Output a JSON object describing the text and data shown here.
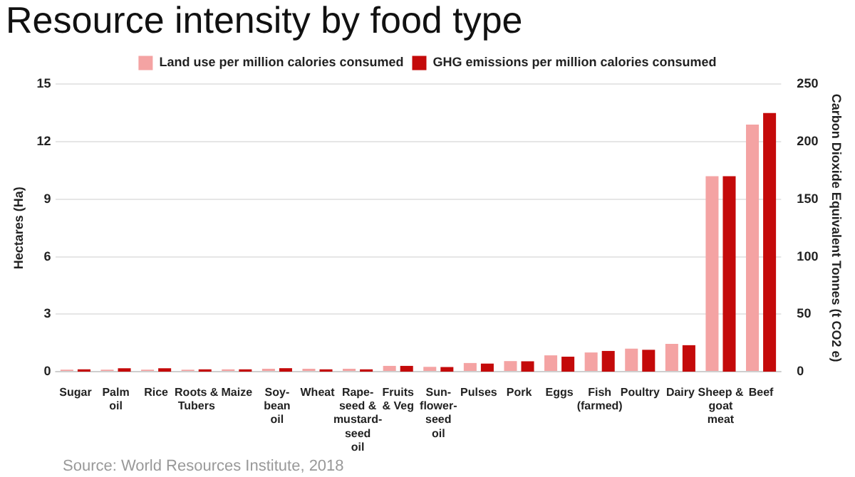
{
  "chart_data": {
    "type": "bar",
    "title": "Resource intensity by food type",
    "ylabel": "Hectares (Ha)",
    "y2label": "Carbon Dioxide Equivalent Tonnes (t CO2 e)",
    "annotations": [
      "Source: World Resources Institute, 2018"
    ],
    "categories": [
      "Sugar",
      "Palm oil",
      "Rice",
      "Roots & Tubers",
      "Maize",
      "Soy-bean oil",
      "Wheat",
      "Rape-seed & mustard-seed oil",
      "Fruits & Veg",
      "Sun-flower-seed oil",
      "Pulses",
      "Pork",
      "Eggs",
      "Fish (farmed)",
      "Poultry",
      "Dairy",
      "Sheep & goat meat",
      "Beef"
    ],
    "series": [
      {
        "name": "Land use per million calories consumed",
        "color": "#f4a3a3",
        "values": [
          0.1,
          0.1,
          0.1,
          0.1,
          0.12,
          0.15,
          0.15,
          0.15,
          0.3,
          0.25,
          0.45,
          0.55,
          0.85,
          1.0,
          1.2,
          1.45,
          10.2,
          12.9
        ]
      },
      {
        "name": "GHG emissions per million calories consumed",
        "color": "#c40a0a",
        "axis": "y2",
        "values": [
          2,
          3,
          3,
          2,
          2,
          3,
          2,
          2,
          5,
          4,
          7,
          9,
          13,
          18,
          19,
          23,
          170,
          225
        ]
      }
    ],
    "ylim": [
      0,
      15
    ],
    "yticks": [
      0,
      3,
      6,
      9,
      12,
      15
    ],
    "y2lim": [
      0,
      250
    ],
    "y2ticks": [
      0,
      50,
      100,
      150,
      200,
      250
    ],
    "grid": "y",
    "legend": "top"
  }
}
